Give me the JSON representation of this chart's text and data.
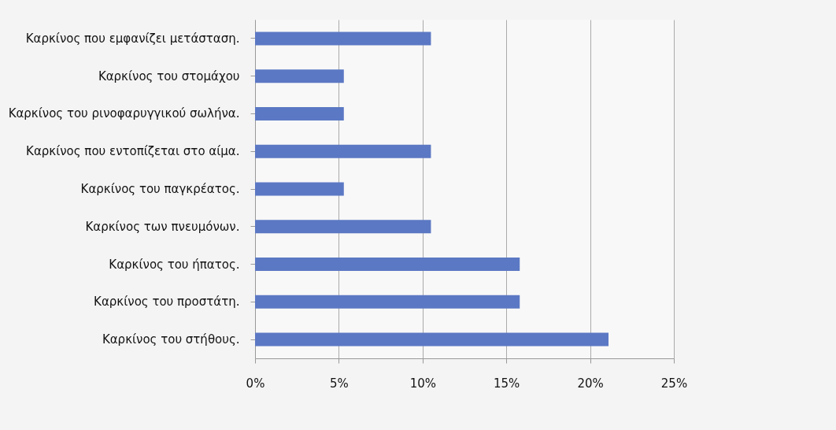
{
  "chart_data": {
    "type": "bar",
    "orientation": "horizontal",
    "categories": [
      "Καρκίνος που εμφανίζει μετάσταση.",
      "Καρκίνος του στομάχου",
      "Καρκίνος του ρινοφαρυγγικού σωλήνα.",
      "Καρκίνος που εντοπίζεται στο αίμα.",
      "Καρκίνος του παγκρέατος.",
      "Καρκίνος των πνευμόνων.",
      "Καρκίνος του ήπατος.",
      "Καρκίνος του προστάτη.",
      "Καρκίνος του στήθους."
    ],
    "values": [
      10.5,
      5.3,
      5.3,
      10.5,
      5.3,
      10.5,
      15.8,
      15.8,
      21.1
    ],
    "color": "#5b78c4",
    "xlim": [
      0,
      25
    ],
    "xticks": [
      {
        "value": 0,
        "label": "0%"
      },
      {
        "value": 5,
        "label": "5%"
      },
      {
        "value": 10,
        "label": "10%"
      },
      {
        "value": 15,
        "label": "15%"
      },
      {
        "value": 20,
        "label": "20%"
      },
      {
        "value": 25,
        "label": "25%"
      }
    ],
    "grid": "x"
  }
}
